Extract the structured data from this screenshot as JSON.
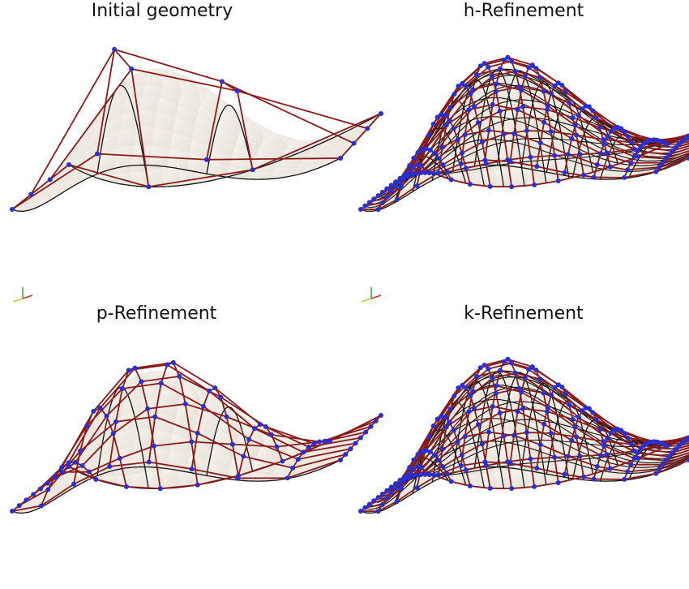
{
  "panels": [
    {
      "title": "Initial geometry"
    },
    {
      "title": "h-Refinement"
    },
    {
      "title": "p-Refinement"
    },
    {
      "title": "k-Refinement"
    }
  ]
}
